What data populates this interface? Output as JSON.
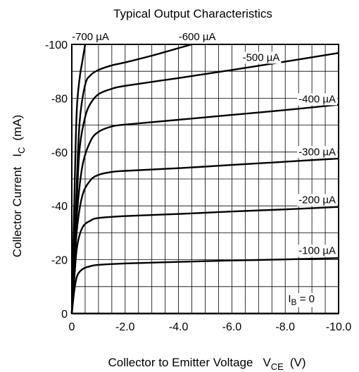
{
  "chart_data": {
    "type": "line",
    "title": "Typical Output Characteristics",
    "xlabel": {
      "main": "Collector to Emitter Voltage",
      "sym": "V",
      "sub": "CE",
      "unit": "(V)"
    },
    "ylabel": {
      "main": "Collector Current",
      "sym": "I",
      "sub": "C",
      "unit": "(mA)"
    },
    "xlim": [
      0,
      -10
    ],
    "ylim": [
      0,
      -100
    ],
    "x_ticks": [
      0,
      -2,
      -4,
      -6,
      -8,
      -10
    ],
    "x_tick_labels": [
      "0",
      "-2.0",
      "-4.0",
      "-6.0",
      "-8.0",
      "-10.0"
    ],
    "y_ticks": [
      0,
      -20,
      -40,
      -60,
      -80,
      -100
    ],
    "y_tick_labels": [
      "0",
      "-20",
      "-40",
      "-60",
      "-80",
      "-100"
    ],
    "x_grid_step": -0.5,
    "y_grid_step": -10,
    "grid": true,
    "series": [
      {
        "name": "I_B = 0",
        "label": {
          "sym": "I",
          "sub": "B",
          "rest": " = 0"
        },
        "x": [
          0,
          -10
        ],
        "y": [
          0,
          0
        ]
      },
      {
        "name": "-100 µA",
        "label": {
          "text": "-100 µA"
        },
        "x": [
          0,
          -0.1,
          -0.2,
          -0.4,
          -0.7,
          -1.0,
          -2.0,
          -4.0,
          -6.0,
          -8.0,
          -10.0
        ],
        "y": [
          0,
          -9,
          -14,
          -16.5,
          -17.6,
          -18.1,
          -18.6,
          -19.2,
          -19.7,
          -20.1,
          -20.6
        ]
      },
      {
        "name": "-200 µA",
        "label": {
          "text": "-200 µA"
        },
        "x": [
          0,
          -0.1,
          -0.2,
          -0.4,
          -0.7,
          -1.0,
          -2.0,
          -4.0,
          -6.0,
          -8.0,
          -10.0
        ],
        "y": [
          0,
          -14,
          -25,
          -32,
          -34.5,
          -35.5,
          -36.2,
          -37,
          -37.9,
          -38.7,
          -39.6
        ]
      },
      {
        "name": "-300 µA",
        "label": {
          "text": "-300 µA"
        },
        "x": [
          0,
          -0.1,
          -0.2,
          -0.4,
          -0.7,
          -1.0,
          -1.5,
          -2.0,
          -4.0,
          -6.0,
          -8.0,
          -10.0
        ],
        "y": [
          0,
          -17,
          -32,
          -44,
          -49.5,
          -51.5,
          -52.6,
          -53,
          -54,
          -55.2,
          -56.4,
          -57.6
        ]
      },
      {
        "name": "-400 µA",
        "label": {
          "text": "-400 µA"
        },
        "x": [
          0,
          -0.1,
          -0.2,
          -0.4,
          -0.7,
          -1.0,
          -1.5,
          -2.0,
          -4.0,
          -6.0,
          -8.0,
          -10.0
        ],
        "y": [
          0,
          -20,
          -38,
          -55,
          -64,
          -67.5,
          -69.5,
          -70.2,
          -72,
          -73.8,
          -75.6,
          -77.6
        ]
      },
      {
        "name": "-500 µA",
        "label": {
          "text": "-500 µA"
        },
        "x": [
          0,
          -0.1,
          -0.2,
          -0.3,
          -0.5,
          -0.7,
          -1.0,
          -1.5,
          -2.0,
          -4.0,
          -6.0,
          -8.0,
          -10.0
        ],
        "y": [
          0,
          -22,
          -45,
          -62,
          -73,
          -78,
          -81.5,
          -83.5,
          -84.6,
          -87.5,
          -90.5,
          -93.6,
          -96.8
        ]
      },
      {
        "name": "-600 µA",
        "label": {
          "text": "-600 µA"
        },
        "x": [
          0,
          -0.1,
          -0.2,
          -0.3,
          -0.5,
          -0.7,
          -1.0,
          -1.5,
          -2.0,
          -3.0,
          -4.0,
          -4.5
        ],
        "y": [
          0,
          -25,
          -52,
          -72,
          -85,
          -88.5,
          -90.5,
          -92.2,
          -93.3,
          -95.8,
          -98.6,
          -100
        ]
      },
      {
        "name": "-700 µA",
        "label": {
          "text": "-700 µA"
        },
        "x": [
          0,
          -0.05,
          -0.1,
          -0.15,
          -0.2,
          -0.3,
          -0.4,
          -0.5
        ],
        "y": [
          0,
          -22,
          -45,
          -65,
          -78,
          -88,
          -94,
          -100
        ]
      }
    ]
  }
}
